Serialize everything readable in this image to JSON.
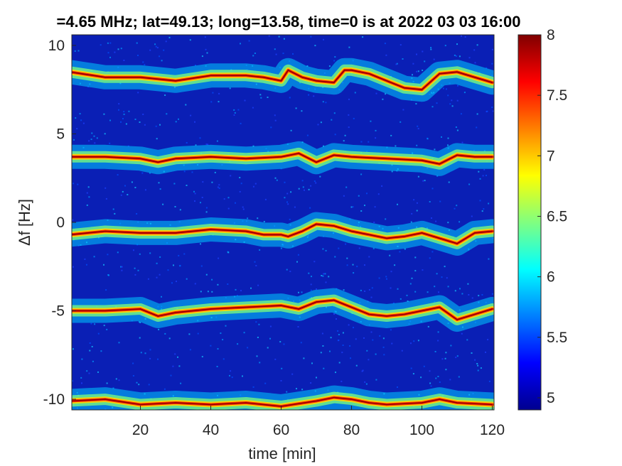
{
  "chart_data": {
    "type": "heatmap",
    "title": "=4.65 MHz;  lat=49.13; long=13.58, time=0 is at 2022 03 03 16:00",
    "xlabel": "time [min]",
    "ylabel": "Δf [Hz]",
    "xlim": [
      0.5,
      120.5
    ],
    "ylim": [
      -10.6,
      10.6
    ],
    "x_ticks": [
      20,
      40,
      60,
      80,
      100,
      120
    ],
    "y_ticks": [
      10,
      5,
      0,
      -5,
      -10
    ],
    "x_tick_labels": [
      "20",
      "40",
      "60",
      "80",
      "100",
      "120"
    ],
    "y_tick_labels": [
      "10",
      "5",
      "0",
      "-5",
      "-10"
    ],
    "colorbar": {
      "colormap": "jet",
      "clim": [
        4.9,
        8.0
      ],
      "ticks": [
        8,
        7.5,
        7,
        6.5,
        6,
        5.5,
        5
      ],
      "tick_labels": [
        "8",
        "7.5",
        "7",
        "6.5",
        "6",
        "5.5",
        "5"
      ]
    },
    "bands": [
      {
        "name": "band-1",
        "x": [
          0,
          10,
          20,
          30,
          40,
          50,
          55,
          60,
          62,
          66,
          70,
          75,
          78,
          80,
          85,
          90,
          95,
          100,
          105,
          110,
          115,
          120
        ],
        "y": [
          8.5,
          8.2,
          8.2,
          8.0,
          8.3,
          8.3,
          8.2,
          8.0,
          8.6,
          8.2,
          8.0,
          7.9,
          8.6,
          8.6,
          8.4,
          8.0,
          7.6,
          7.5,
          8.4,
          8.5,
          8.2,
          7.9
        ]
      },
      {
        "name": "band-2",
        "x": [
          0,
          10,
          20,
          25,
          30,
          40,
          50,
          60,
          65,
          70,
          75,
          80,
          90,
          100,
          105,
          110,
          115,
          120
        ],
        "y": [
          3.7,
          3.7,
          3.6,
          3.4,
          3.6,
          3.7,
          3.6,
          3.7,
          3.9,
          3.4,
          3.8,
          3.7,
          3.6,
          3.5,
          3.3,
          3.8,
          3.7,
          3.7
        ]
      },
      {
        "name": "band-3",
        "x": [
          0,
          10,
          20,
          30,
          40,
          50,
          55,
          60,
          62,
          66,
          70,
          75,
          80,
          85,
          90,
          95,
          100,
          105,
          110,
          115,
          120
        ],
        "y": [
          -0.7,
          -0.5,
          -0.6,
          -0.6,
          -0.4,
          -0.5,
          -0.7,
          -0.7,
          -0.8,
          -0.5,
          -0.1,
          -0.2,
          -0.5,
          -0.7,
          -0.9,
          -0.8,
          -0.6,
          -0.9,
          -1.2,
          -0.6,
          -0.5
        ]
      },
      {
        "name": "band-4",
        "x": [
          0,
          10,
          20,
          25,
          30,
          40,
          50,
          60,
          65,
          70,
          75,
          80,
          85,
          90,
          95,
          100,
          105,
          110,
          115,
          120
        ],
        "y": [
          -5.0,
          -5.0,
          -4.9,
          -5.3,
          -5.1,
          -4.9,
          -4.8,
          -4.7,
          -4.9,
          -4.5,
          -4.4,
          -4.8,
          -5.2,
          -5.3,
          -5.2,
          -5.0,
          -4.8,
          -5.5,
          -5.2,
          -4.9
        ]
      },
      {
        "name": "band-5",
        "x": [
          0,
          10,
          20,
          30,
          40,
          50,
          60,
          70,
          75,
          80,
          85,
          90,
          100,
          105,
          110,
          120
        ],
        "y": [
          -10.1,
          -10.0,
          -10.3,
          -10.2,
          -10.3,
          -10.2,
          -10.4,
          -10.1,
          -9.9,
          -10.0,
          -10.2,
          -10.3,
          -10.2,
          -10.0,
          -10.2,
          -10.3
        ]
      }
    ]
  }
}
